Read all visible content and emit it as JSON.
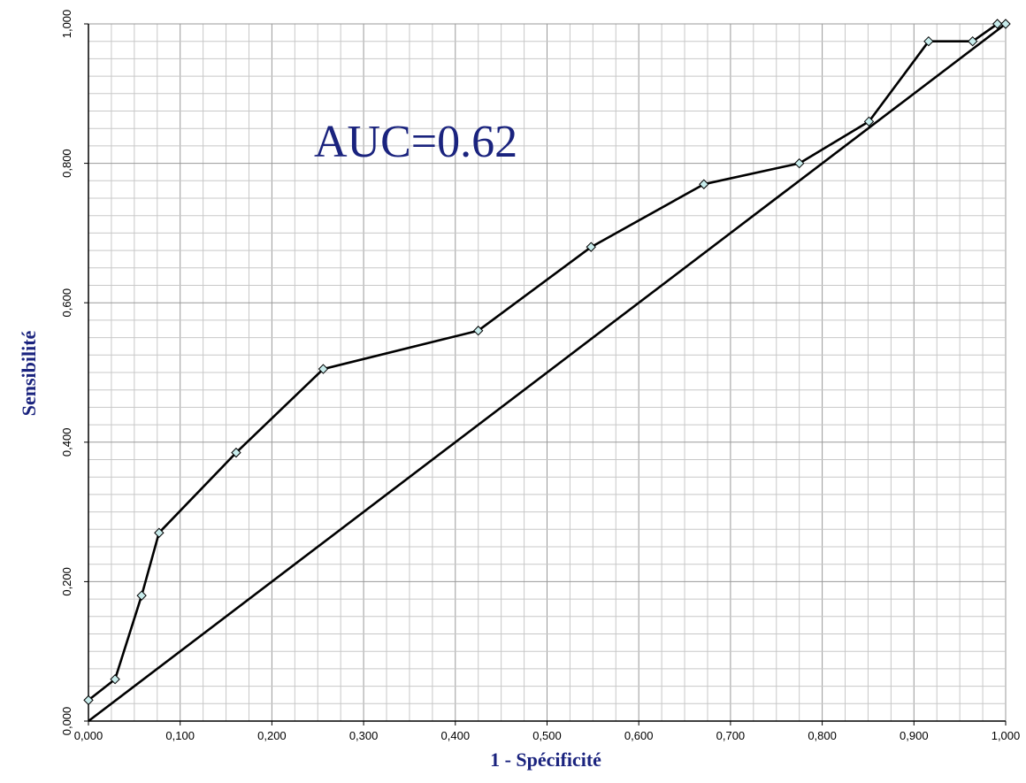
{
  "chart_data": {
    "type": "line",
    "title": "",
    "xlabel": "1 - Spécificité",
    "ylabel": "Sensibilité",
    "xlim": [
      0,
      1
    ],
    "ylim": [
      0,
      1
    ],
    "x_ticks": [
      "0,000",
      "0,100",
      "0,200",
      "0,300",
      "0,400",
      "0,500",
      "0,600",
      "0,700",
      "0,800",
      "0,900",
      "1,000"
    ],
    "y_ticks": [
      "0,000",
      "0,200",
      "0,400",
      "0,600",
      "0,800",
      "1,000"
    ],
    "grid": true,
    "annotation": "AUC=0.62",
    "colors": {
      "line": "#000000",
      "marker_fill": "#c8ecec",
      "grid_major": "#9a9a9a",
      "grid_minor": "#c8c8c8",
      "annotation": "#1a237e",
      "axis_title": "#1a237e"
    },
    "series": [
      {
        "x": [
          0.0,
          0.029,
          0.058,
          0.077,
          0.161,
          0.256,
          0.425,
          0.548,
          0.671,
          0.775,
          0.851,
          0.916,
          0.964,
          0.991,
          1.0
        ],
        "y": [
          0.03,
          0.06,
          0.18,
          0.27,
          0.385,
          0.505,
          0.56,
          0.68,
          0.77,
          0.8,
          0.86,
          0.975,
          0.975,
          1.0,
          1.0
        ]
      },
      {
        "x": [
          0.0,
          1.0
        ],
        "y": [
          0.0,
          1.0
        ]
      }
    ]
  }
}
